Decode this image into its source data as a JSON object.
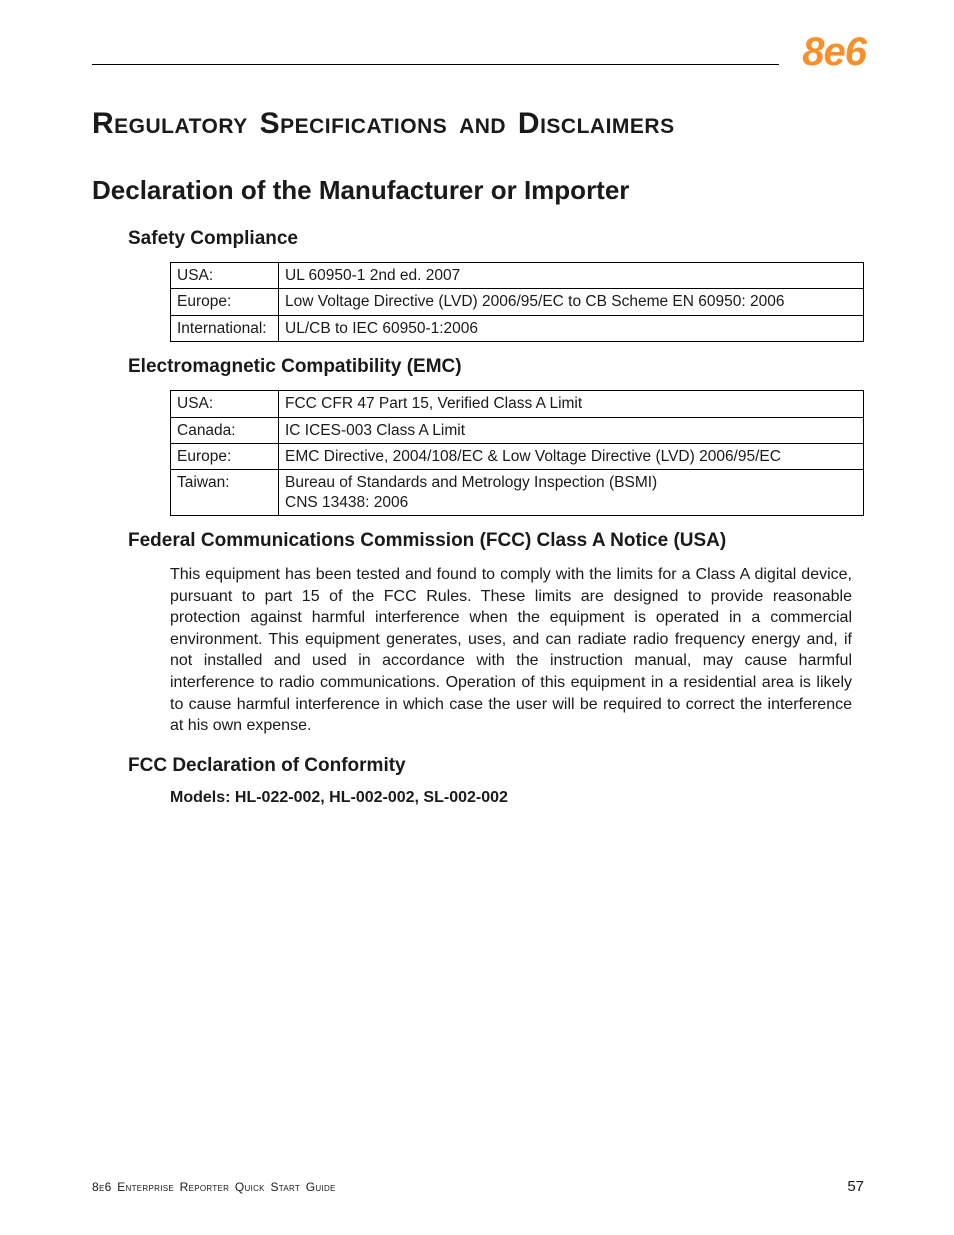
{
  "logo": {
    "text": "8e6",
    "color": "#f7902a"
  },
  "page_title": "Regulatory Specifications and Disclaimers",
  "section_title": "Declaration of the Manufacturer or Importer",
  "safety": {
    "heading": "Safety Compliance",
    "rows": [
      {
        "region": "USA:",
        "spec": "UL 60950-1 2nd ed. 2007"
      },
      {
        "region": "Europe:",
        "spec": "Low Voltage Directive (LVD) 2006/95/EC to CB Scheme EN 60950: 2006"
      },
      {
        "region": "International:",
        "spec": "UL/CB to IEC 60950-1:2006"
      }
    ]
  },
  "emc": {
    "heading": "Electromagnetic Compatibility (EMC)",
    "rows": [
      {
        "region": "USA:",
        "spec": "FCC CFR 47 Part 15, Verified Class A Limit"
      },
      {
        "region": "Canada:",
        "spec": "IC ICES-003 Class A Limit"
      },
      {
        "region": "Europe:",
        "spec": "EMC Directive, 2004/108/EC & Low Voltage Directive (LVD) 2006/95/EC"
      },
      {
        "region": "Taiwan:",
        "spec": "Bureau of Standards and Metrology Inspection (BSMI)\nCNS 13438: 2006"
      }
    ]
  },
  "fcc_notice": {
    "heading": "Federal Communications Commission (FCC) Class A Notice (USA)",
    "body": "This equipment has been tested and found to comply with the limits for a Class A digital device, pursuant to part 15 of the FCC Rules. These limits are designed to provide reasonable protection against harmful interference when the equipment is operated in a commercial environment. This equipment generates, uses, and can radiate radio frequency energy and, if not installed and used in accordance with the instruction manual, may cause harmful interference to radio communications. Operation of this equipment in a residential area is likely to cause harmful interference in which case the user will be required to correct the interference at his own expense."
  },
  "fcc_declaration": {
    "heading": "FCC Declaration of Conformity",
    "models": "Models: HL-022-002, HL-002-002, SL-002-002"
  },
  "footer": {
    "title": "8e6 Enterprise Reporter Quick Start Guide",
    "page": "57"
  }
}
